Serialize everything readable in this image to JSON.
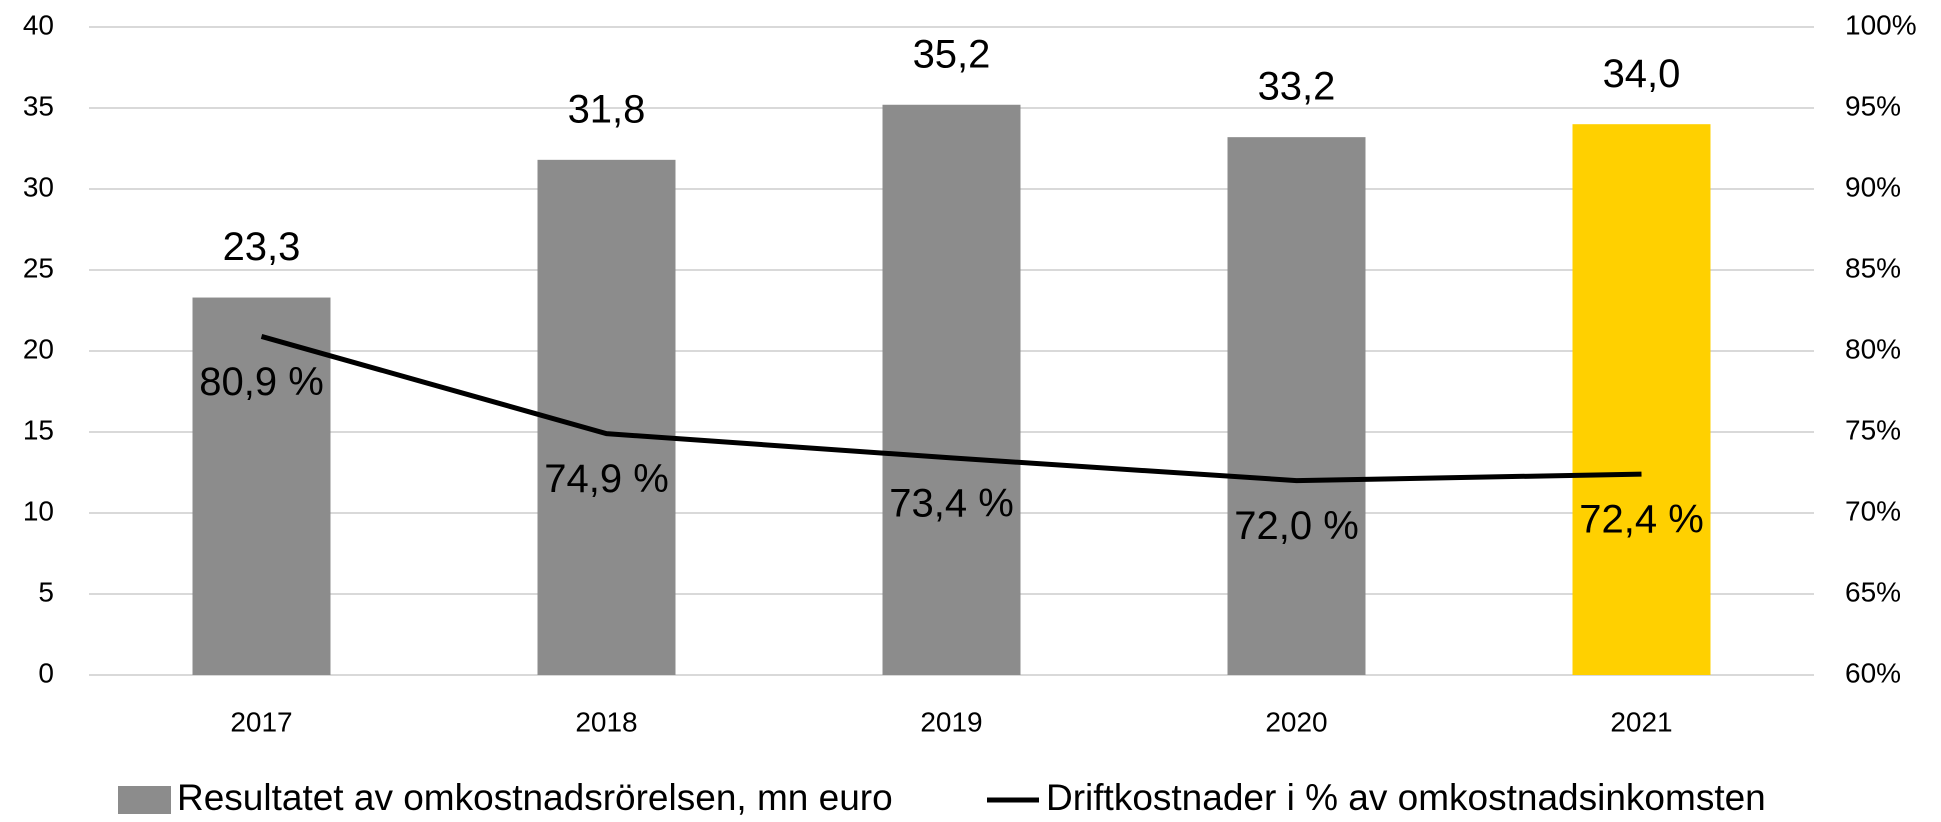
{
  "chart_data": {
    "type": "bar",
    "categories": [
      "2017",
      "2018",
      "2019",
      "2020",
      "2021"
    ],
    "series": [
      {
        "name": "Resultatet av omkostnadsrörelsen, mn euro",
        "type": "bar",
        "color": "#8c8c8c",
        "colors": [
          "#8c8c8c",
          "#8c8c8c",
          "#8c8c8c",
          "#8c8c8c",
          "#ffd000"
        ],
        "values": [
          23.3,
          31.8,
          35.2,
          33.2,
          34.0
        ],
        "value_labels": [
          "23,3",
          "31,8",
          "35,2",
          "33,2",
          "34,0"
        ]
      },
      {
        "name": "Driftkostnader i % av omkostnadsinkomsten",
        "type": "line",
        "axis": "y2",
        "color": "#000000",
        "values": [
          80.9,
          74.9,
          73.4,
          72.0,
          72.4
        ],
        "value_labels": [
          "80,9 %",
          "74,9 %",
          "73,4 %",
          "72,0 %",
          "72,4 %"
        ]
      }
    ],
    "ylim": [
      0,
      40
    ],
    "yticks": [
      0,
      5,
      10,
      15,
      20,
      25,
      30,
      35,
      40
    ],
    "y2lim": [
      60,
      100
    ],
    "y2ticks": [
      {
        "value": 60,
        "label": "60%"
      },
      {
        "value": 65,
        "label": "65%"
      },
      {
        "value": 70,
        "label": "70%"
      },
      {
        "value": 75,
        "label": "75%"
      },
      {
        "value": 80,
        "label": "80%"
      },
      {
        "value": 85,
        "label": "85%"
      },
      {
        "value": 90,
        "label": "90%"
      },
      {
        "value": 95,
        "label": "95%"
      },
      {
        "value": 100,
        "label": "100%"
      }
    ],
    "grid": true,
    "legend": "bottom"
  }
}
